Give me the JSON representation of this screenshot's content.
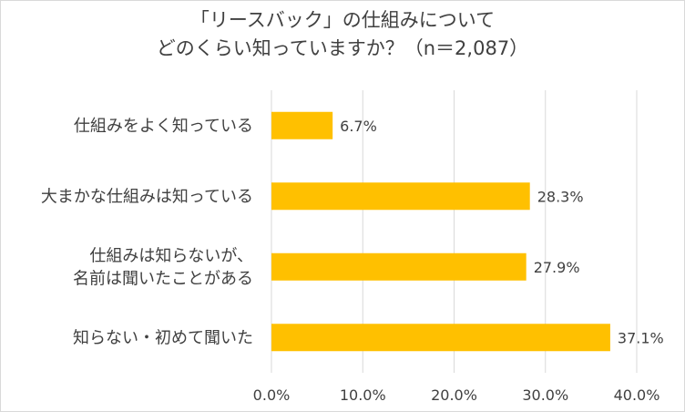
{
  "chart_data": {
    "type": "bar",
    "orientation": "horizontal",
    "title_lines": [
      "「リースバック」の仕組みについて",
      "どのくらい知っていますか？（n＝2,087）"
    ],
    "categories": [
      [
        "仕組みをよく知っている"
      ],
      [
        "大まかな仕組みは知っている"
      ],
      [
        "仕組みは知らないが、",
        "名前は聞いたことがある"
      ],
      [
        "知らない・初めて聞いた"
      ]
    ],
    "values": [
      6.7,
      28.3,
      27.9,
      37.1
    ],
    "value_labels": [
      "6.7%",
      "28.3%",
      "27.9%",
      "37.1%"
    ],
    "x_ticks": [
      "0.0%",
      "10.0%",
      "20.0%",
      "30.0%",
      "40.0%"
    ],
    "xlim": [
      0,
      40
    ],
    "grid": true,
    "bar_color": "#FFC000",
    "grid_color": "#d9d9d9",
    "text_color": "#404040"
  }
}
